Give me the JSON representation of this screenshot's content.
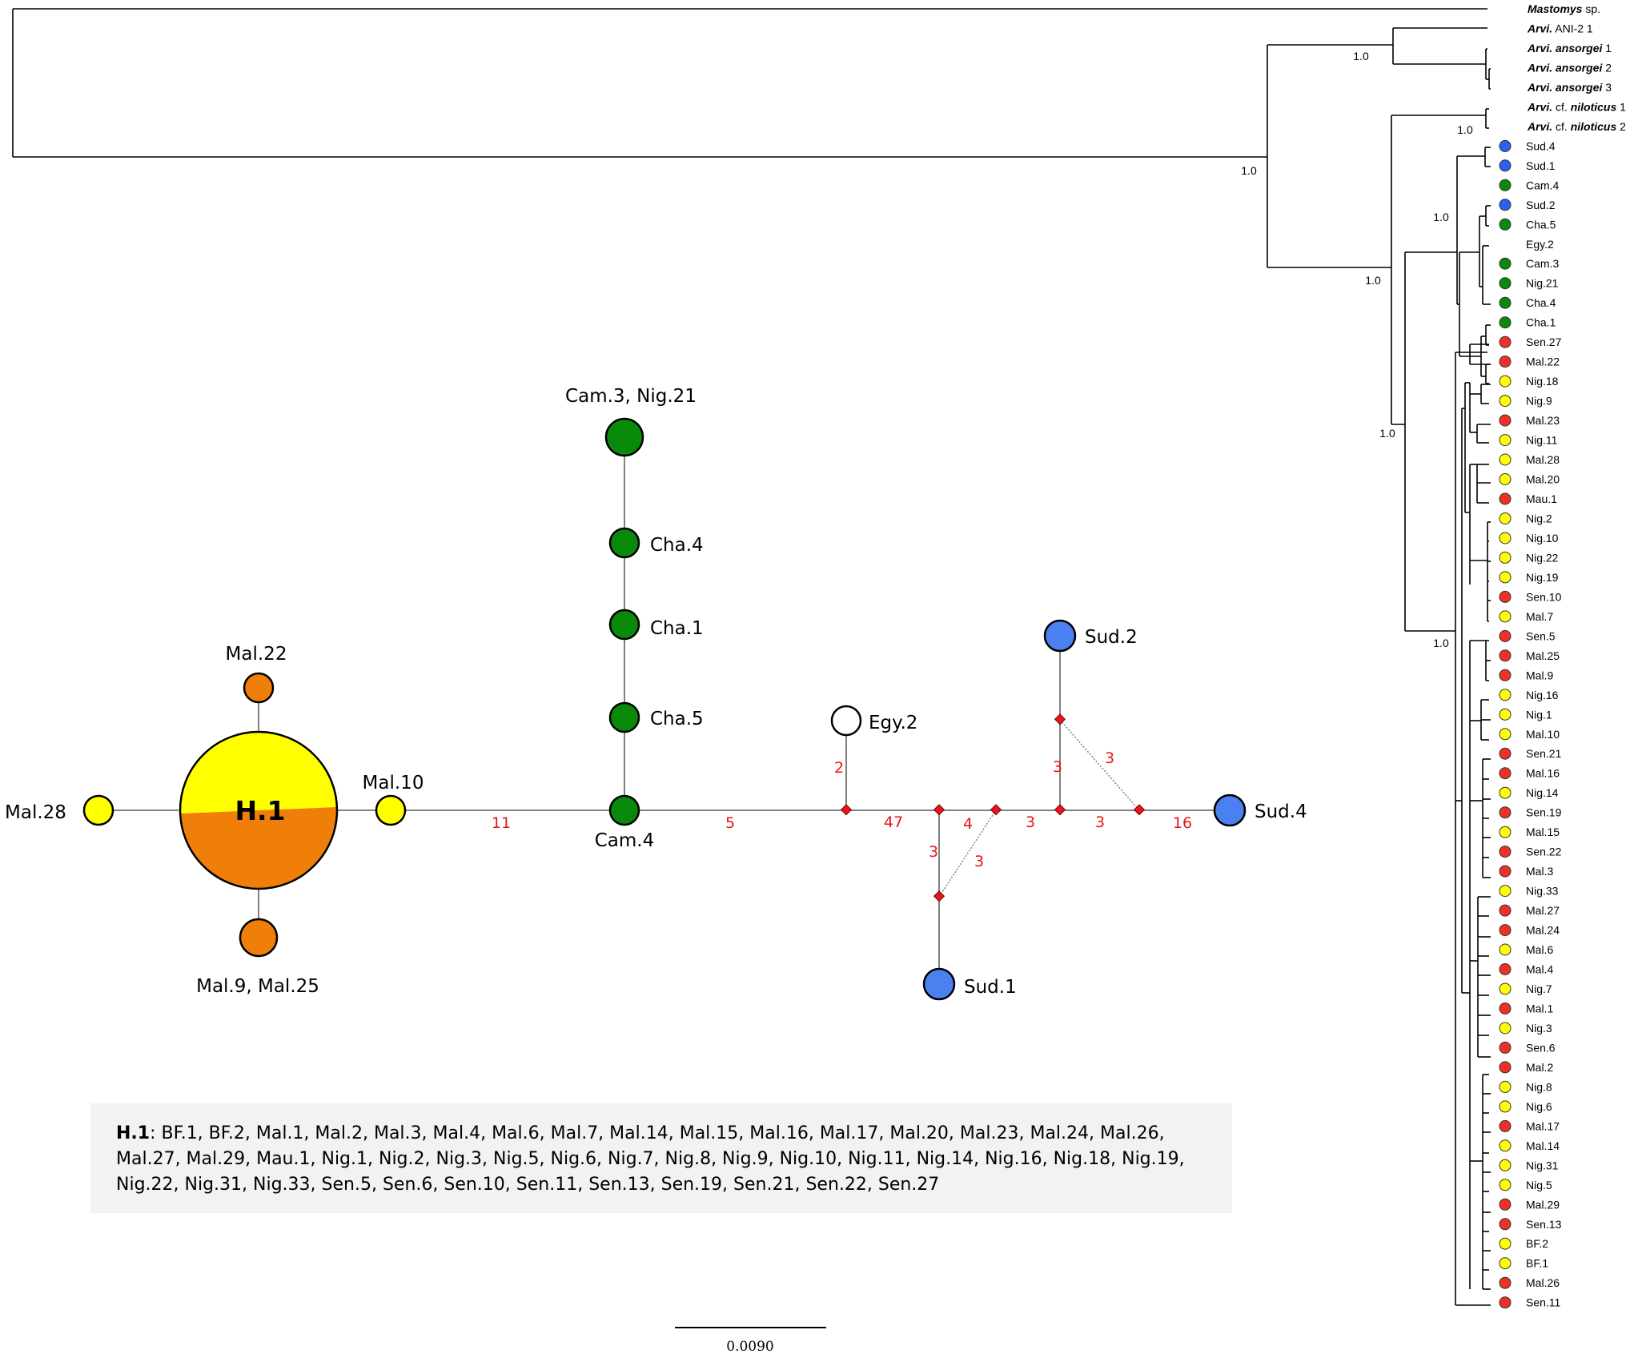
{
  "colors": {
    "red": "#ee3124",
    "yellow": "#ffff00",
    "green": "#0a8a0a",
    "blue": "#2b60f0",
    "orange": "#f07f0a",
    "node_blue": "#4a80f0",
    "mutation": "#e8141b"
  },
  "tree": {
    "tips": [
      {
        "id": "t0",
        "genus": "Mastomys",
        "rest": " sp.",
        "color": ""
      },
      {
        "id": "t1",
        "genus": "Arvi.",
        "rest": " ANI-2 1",
        "color": ""
      },
      {
        "id": "t2",
        "genus": "Arvi. ansorgei",
        "rest": " 1",
        "color": ""
      },
      {
        "id": "t3",
        "genus": "Arvi. ansorgei",
        "rest": " 2",
        "color": ""
      },
      {
        "id": "t4",
        "genus": "Arvi. ansorgei",
        "rest": " 3",
        "color": ""
      },
      {
        "id": "t5",
        "genus": "Arvi.",
        "rest": " cf. ",
        "genus2": "niloticus",
        "rest2": " 1",
        "color": ""
      },
      {
        "id": "t6",
        "genus": "Arvi.",
        "rest": " cf. ",
        "genus2": "niloticus",
        "rest2": " 2",
        "color": ""
      },
      {
        "id": "t7",
        "label": "Sud.4",
        "color": "blue"
      },
      {
        "id": "t8",
        "label": "Sud.1",
        "color": "blue"
      },
      {
        "id": "t9",
        "label": "Cam.4",
        "color": "green"
      },
      {
        "id": "t10",
        "label": "Sud.2",
        "color": "blue"
      },
      {
        "id": "t11",
        "label": "Cha.5",
        "color": "green"
      },
      {
        "id": "t12",
        "label": "Egy.2",
        "color": ""
      },
      {
        "id": "t13",
        "label": "Cam.3",
        "color": "green"
      },
      {
        "id": "t14",
        "label": "Nig.21",
        "color": "green"
      },
      {
        "id": "t15",
        "label": "Cha.4",
        "color": "green"
      },
      {
        "id": "t16",
        "label": "Cha.1",
        "color": "green"
      },
      {
        "id": "t17",
        "label": "Sen.27",
        "color": "red"
      },
      {
        "id": "t18",
        "label": "Mal.22",
        "color": "red"
      },
      {
        "id": "t19",
        "label": "Nig.18",
        "color": "yellow"
      },
      {
        "id": "t20",
        "label": "Nig.9",
        "color": "yellow"
      },
      {
        "id": "t21",
        "label": "Mal.23",
        "color": "red"
      },
      {
        "id": "t22",
        "label": "Nig.11",
        "color": "yellow"
      },
      {
        "id": "t23",
        "label": "Mal.28",
        "color": "yellow"
      },
      {
        "id": "t24",
        "label": "Mal.20",
        "color": "yellow"
      },
      {
        "id": "t25",
        "label": "Mau.1",
        "color": "red"
      },
      {
        "id": "t26",
        "label": "Nig.2",
        "color": "yellow"
      },
      {
        "id": "t27",
        "label": "Nig.10",
        "color": "yellow"
      },
      {
        "id": "t28",
        "label": "Nig.22",
        "color": "yellow"
      },
      {
        "id": "t29",
        "label": "Nig.19",
        "color": "yellow"
      },
      {
        "id": "t30",
        "label": "Sen.10",
        "color": "red"
      },
      {
        "id": "t31",
        "label": "Mal.7",
        "color": "yellow"
      },
      {
        "id": "t32",
        "label": "Sen.5",
        "color": "red"
      },
      {
        "id": "t33",
        "label": "Mal.25",
        "color": "red"
      },
      {
        "id": "t34",
        "label": "Mal.9",
        "color": "red"
      },
      {
        "id": "t35",
        "label": "Nig.16",
        "color": "yellow"
      },
      {
        "id": "t36",
        "label": "Nig.1",
        "color": "yellow"
      },
      {
        "id": "t37",
        "label": "Mal.10",
        "color": "yellow"
      },
      {
        "id": "t38",
        "label": "Sen.21",
        "color": "red"
      },
      {
        "id": "t39",
        "label": "Mal.16",
        "color": "red"
      },
      {
        "id": "t40",
        "label": "Nig.14",
        "color": "yellow"
      },
      {
        "id": "t41",
        "label": "Sen.19",
        "color": "red"
      },
      {
        "id": "t42",
        "label": "Mal.15",
        "color": "yellow"
      },
      {
        "id": "t43",
        "label": "Sen.22",
        "color": "red"
      },
      {
        "id": "t44",
        "label": "Mal.3",
        "color": "red"
      },
      {
        "id": "t45",
        "label": "Nig.33",
        "color": "yellow"
      },
      {
        "id": "t46",
        "label": "Mal.27",
        "color": "red"
      },
      {
        "id": "t47",
        "label": "Mal.24",
        "color": "red"
      },
      {
        "id": "t48",
        "label": "Mal.6",
        "color": "yellow"
      },
      {
        "id": "t49",
        "label": "Mal.4",
        "color": "red"
      },
      {
        "id": "t50",
        "label": "Nig.7",
        "color": "yellow"
      },
      {
        "id": "t51",
        "label": "Mal.1",
        "color": "red"
      },
      {
        "id": "t52",
        "label": "Nig.3",
        "color": "yellow"
      },
      {
        "id": "t53",
        "label": "Sen.6",
        "color": "red"
      },
      {
        "id": "t54",
        "label": "Mal.2",
        "color": "red"
      },
      {
        "id": "t55",
        "label": "Nig.8",
        "color": "yellow"
      },
      {
        "id": "t56",
        "label": "Nig.6",
        "color": "yellow"
      },
      {
        "id": "t57",
        "label": "Mal.17",
        "color": "red"
      },
      {
        "id": "t58",
        "label": "Mal.14",
        "color": "yellow"
      },
      {
        "id": "t59",
        "label": "Nig.31",
        "color": "yellow"
      },
      {
        "id": "t60",
        "label": "Nig.5",
        "color": "yellow"
      },
      {
        "id": "t61",
        "label": "Mal.29",
        "color": "red"
      },
      {
        "id": "t62",
        "label": "Sen.13",
        "color": "red"
      },
      {
        "id": "t63",
        "label": "BF.2",
        "color": "yellow"
      },
      {
        "id": "t64",
        "label": "BF.1",
        "color": "yellow"
      },
      {
        "id": "t65",
        "label": "Mal.26",
        "color": "red"
      },
      {
        "id": "t66",
        "label": "Sen.11",
        "color": "red"
      }
    ],
    "support": [
      "1.0",
      "1.0",
      "1.0",
      "1.0",
      "1.0",
      "1.0",
      "1.0"
    ],
    "scale_label": "0.0090"
  },
  "network": {
    "nodes": [
      {
        "id": "cam3",
        "label": "Cam.3, Nig.21"
      },
      {
        "id": "cha4",
        "label": "Cha.4"
      },
      {
        "id": "cha1",
        "label": "Cha.1"
      },
      {
        "id": "cha5",
        "label": "Cha.5"
      },
      {
        "id": "cam4",
        "label": "Cam.4"
      },
      {
        "id": "mal22",
        "label": "Mal.22"
      },
      {
        "id": "mal28",
        "label": "Mal.28"
      },
      {
        "id": "mal10",
        "label": "Mal.10"
      },
      {
        "id": "mal9",
        "label": "Mal.9, Mal.25"
      },
      {
        "id": "h1",
        "label": "H.1"
      },
      {
        "id": "egy2",
        "label": "Egy.2"
      },
      {
        "id": "sud2",
        "label": "Sud.2"
      },
      {
        "id": "sud4",
        "label": "Sud.4"
      },
      {
        "id": "sud1",
        "label": "Sud.1"
      }
    ],
    "mutations": [
      "11",
      "5",
      "2",
      "47",
      "4",
      "3",
      "3",
      "3",
      "16",
      "3",
      "3",
      "3"
    ]
  },
  "legend": {
    "key": "H.1",
    "text": ": BF.1, BF.2, Mal.1, Mal.2, Mal.3, Mal.4, Mal.6, Mal.7, Mal.14, Mal.15, Mal.16, Mal.17, Mal.20, Mal.23, Mal.24, Mal.26, Mal.27, Mal.29, Mau.1, Nig.1, Nig.2, Nig.3, Nig.5, Nig.6, Nig.7, Nig.8, Nig.9, Nig.10, Nig.11, Nig.14, Nig.16, Nig.18, Nig.19, Nig.22, Nig.31, Nig.33, Sen.5, Sen.6, Sen.10, Sen.11, Sen.13, Sen.19, Sen.21, Sen.22, Sen.27"
  }
}
